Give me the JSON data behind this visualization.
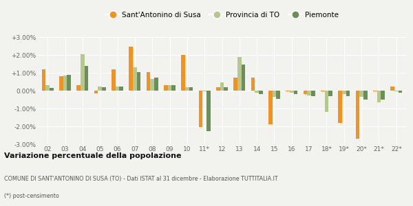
{
  "categories": [
    "02",
    "03",
    "04",
    "05",
    "06",
    "07",
    "08",
    "09",
    "10",
    "11*",
    "12",
    "13",
    "14",
    "15",
    "16",
    "17",
    "18*",
    "19*",
    "20*",
    "21*",
    "22*"
  ],
  "sant_antonino": [
    1.2,
    0.8,
    0.3,
    -0.15,
    1.2,
    2.45,
    1.05,
    0.3,
    2.0,
    -2.05,
    0.2,
    0.75,
    0.75,
    -1.9,
    -0.05,
    -0.2,
    -0.05,
    -1.8,
    -2.7,
    -0.05,
    0.25
  ],
  "provincia_to": [
    0.3,
    0.85,
    2.05,
    0.25,
    0.25,
    1.3,
    0.65,
    0.3,
    0.2,
    -0.05,
    0.45,
    1.9,
    -0.1,
    -0.35,
    -0.1,
    -0.25,
    -1.2,
    -0.2,
    -0.35,
    -0.65,
    -0.05
  ],
  "piemonte": [
    0.15,
    0.9,
    1.4,
    0.2,
    0.25,
    1.05,
    0.75,
    0.3,
    0.2,
    -2.25,
    0.2,
    1.45,
    -0.2,
    -0.45,
    -0.2,
    -0.3,
    -0.3,
    -0.3,
    -0.5,
    -0.5,
    -0.1
  ],
  "color_orange": "#F5921E",
  "color_light_green": "#B5C98E",
  "color_dark_green": "#6B8E5A",
  "ylim_min": -3.0,
  "ylim_max": 3.0,
  "yticks": [
    -3.0,
    -2.0,
    -1.0,
    0.0,
    1.0,
    2.0,
    3.0
  ],
  "legend_labels": [
    "Sant'Antonino di Susa",
    "Provincia di TO",
    "Piemonte"
  ],
  "title_bold": "Variazione percentuale della popolazione",
  "subtitle": "COMUNE DI SANT'ANTONINO DI SUSA (TO) - Dati ISTAT al 31 dicembre - Elaborazione TUTTITALIA.IT",
  "footnote": "(*) post-censimento",
  "background_color": "#F2F2EE",
  "bar_width": 0.22
}
